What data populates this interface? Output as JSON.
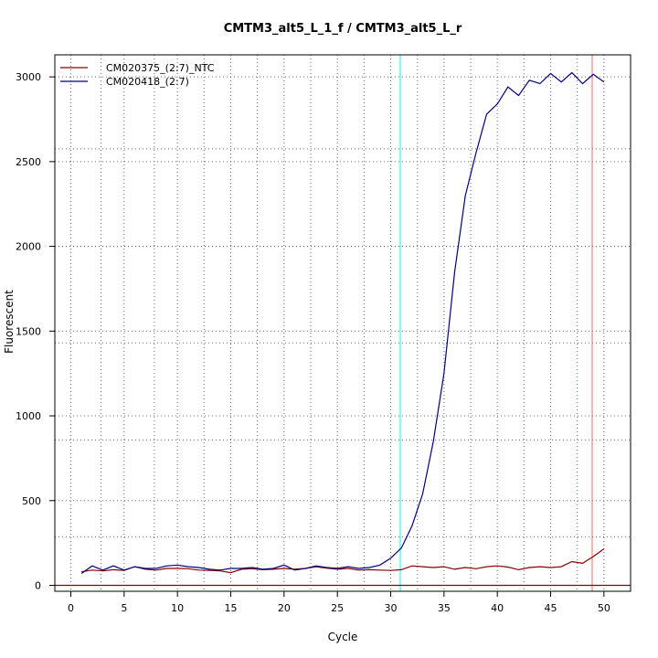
{
  "chart_data": {
    "type": "line",
    "title": "CMTM3_alt5_L_1_f / CMTM3_alt5_L_r",
    "xlabel": "Cycle",
    "ylabel": "Fluorescent",
    "xlim": [
      -1.5,
      52.5
    ],
    "ylim": [
      -35,
      3130
    ],
    "x_ticks": [
      0,
      5,
      10,
      15,
      20,
      25,
      30,
      35,
      40,
      45,
      50
    ],
    "y_ticks": [
      0,
      500,
      1000,
      1500,
      2000,
      2500,
      3000
    ],
    "x_minor_gridlines": [
      2.83,
      7.83,
      12.5,
      17.5,
      22.5,
      27.5,
      32.5,
      37.5,
      42.5,
      47.5
    ],
    "y_minor_gridlines": [
      285,
      858,
      1430,
      2000,
      2575,
      3145
    ],
    "grid": true,
    "legend_position": "top-left",
    "x": [
      1,
      2,
      3,
      4,
      5,
      6,
      7,
      8,
      9,
      10,
      11,
      12,
      13,
      14,
      15,
      16,
      17,
      18,
      19,
      20,
      21,
      22,
      23,
      24,
      25,
      26,
      27,
      28,
      29,
      30,
      31,
      32,
      33,
      34,
      35,
      36,
      37,
      38,
      39,
      40,
      41,
      42,
      43,
      44,
      45,
      46,
      47,
      48,
      49,
      50
    ],
    "series": [
      {
        "name": "CM020375_(2:7)_NTC",
        "color": "#8b0000",
        "values": [
          80,
          90,
          85,
          92,
          88,
          110,
          95,
          90,
          100,
          100,
          98,
          90,
          88,
          85,
          75,
          95,
          98,
          92,
          95,
          100,
          95,
          100,
          110,
          102,
          95,
          100,
          90,
          92,
          90,
          88,
          92,
          115,
          110,
          105,
          110,
          95,
          105,
          98,
          110,
          115,
          108,
          92,
          105,
          110,
          105,
          110,
          140,
          130,
          170,
          215
        ]
      },
      {
        "name": "CM020418_(2:7)",
        "color": "#000080",
        "values": [
          70,
          115,
          90,
          115,
          90,
          110,
          100,
          100,
          115,
          120,
          110,
          105,
          95,
          90,
          100,
          100,
          105,
          95,
          100,
          120,
          90,
          100,
          115,
          105,
          100,
          110,
          100,
          105,
          120,
          160,
          220,
          350,
          540,
          850,
          1250,
          1850,
          2300,
          2550,
          2780,
          2840,
          2940,
          2890,
          2980,
          2960,
          3020,
          2970,
          3025,
          2960,
          3015,
          2970
        ]
      }
    ],
    "reference_lines": {
      "vertical_cyan": {
        "x": 30.9,
        "color": "#00ffff"
      },
      "vertical_red": {
        "x": 48.9,
        "color": "#ff6666"
      },
      "horizontal_red": {
        "y": 0,
        "color": "#8b0000"
      }
    }
  }
}
